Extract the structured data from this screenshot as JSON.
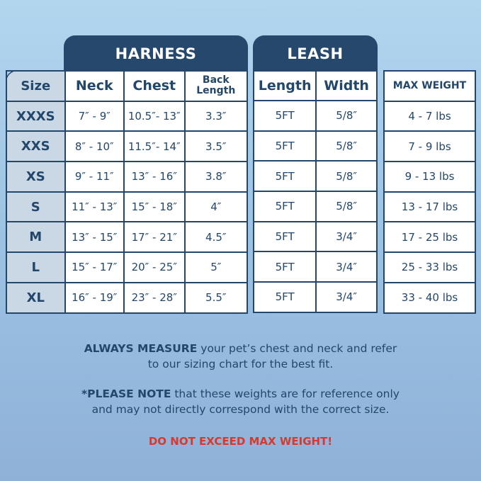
{
  "harness_title": "HARNESS",
  "leash_title": "LEASH",
  "headers": {
    "size": "Size",
    "neck": "Neck",
    "chest": "Chest",
    "back_length": "Back Length",
    "length": "Length",
    "width": "Width",
    "max_weight": "MAX WEIGHT"
  },
  "rows": [
    {
      "size": "XXXS",
      "neck": "7″ - 9″",
      "chest": "10.5″- 13″",
      "back": "3.3″",
      "length": "5FT",
      "width": "5/8″",
      "weight": "4 - 7 lbs"
    },
    {
      "size": "XXS",
      "neck": "8″ - 10″",
      "chest": "11.5″- 14″",
      "back": "3.5″",
      "length": "5FT",
      "width": "5/8″",
      "weight": "7 - 9 lbs"
    },
    {
      "size": "XS",
      "neck": "9″ - 11″",
      "chest": "13″ - 16″",
      "back": "3.8″",
      "length": "5FT",
      "width": "5/8″",
      "weight": "9 - 13 lbs"
    },
    {
      "size": "S",
      "neck": "11″ - 13″",
      "chest": "15″ - 18″",
      "back": "4″",
      "length": "5FT",
      "width": "5/8″",
      "weight": "13 - 17 lbs"
    },
    {
      "size": "M",
      "neck": "13″ - 15″",
      "chest": "17″ - 21″",
      "back": "4.5″",
      "length": "5FT",
      "width": "3/4″",
      "weight": "17 - 25 lbs"
    },
    {
      "size": "L",
      "neck": "15″ - 17″",
      "chest": "20″ - 25″",
      "back": "5″",
      "length": "5FT",
      "width": "3/4″",
      "weight": "25 - 33 lbs"
    },
    {
      "size": "XL",
      "neck": "16″ - 19″",
      "chest": "23″ - 28″",
      "back": "5.5″",
      "length": "5FT",
      "width": "3/4″",
      "weight": "33 - 40 lbs"
    }
  ],
  "notes": {
    "measure_bold": "ALWAYS MEASURE",
    "measure_rest": " your pet’s chest and neck and refer",
    "measure_line2": "to our sizing chart for the best fit.",
    "note_bold": "*PLEASE NOTE",
    "note_rest": " that these weights are for reference only",
    "note_line2": "and may not directly correspond with the correct size.",
    "warning": "DO NOT EXCEED MAX WEIGHT!"
  }
}
